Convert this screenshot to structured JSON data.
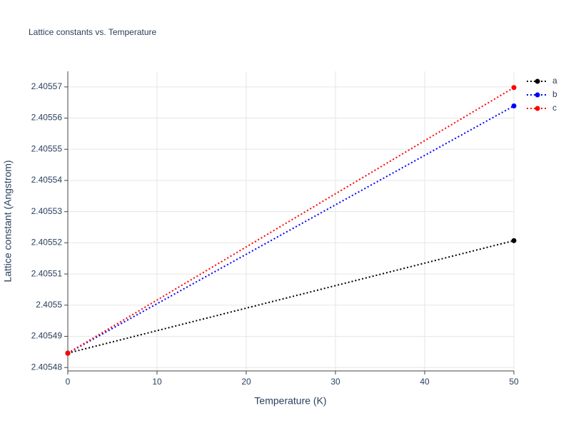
{
  "chart_data": {
    "type": "line",
    "title": "Lattice constants vs. Temperature",
    "x_label": "Temperature (K)",
    "y_label": "Lattice constant (Angstrom)",
    "x": [
      0,
      50
    ],
    "series": [
      {
        "name": "a",
        "color": "#000000",
        "values": [
          2.4054846,
          2.4055207
        ]
      },
      {
        "name": "b",
        "color": "#0000ff",
        "values": [
          2.4054846,
          2.4055639
        ]
      },
      {
        "name": "c",
        "color": "#ff0000",
        "values": [
          2.4054846,
          2.4055698
        ]
      }
    ],
    "xlim": [
      0,
      50
    ],
    "xticks": [
      0,
      10,
      20,
      30,
      40,
      50
    ],
    "ylim": [
      2.4054789,
      2.405575
    ],
    "yticks": [
      2.40548,
      2.40549,
      2.4055,
      2.40551,
      2.40552,
      2.40553,
      2.40554,
      2.40555,
      2.40556,
      2.40557
    ],
    "grid": true,
    "legend": "top-right"
  }
}
